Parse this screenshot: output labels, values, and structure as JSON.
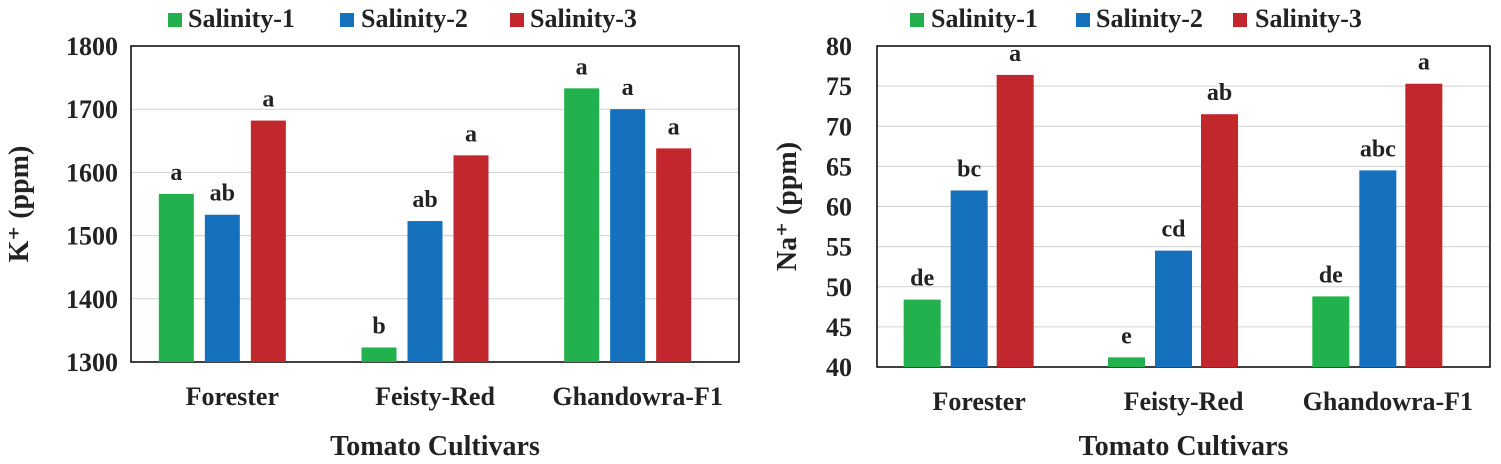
{
  "chart_data": [
    {
      "type": "bar",
      "title": "",
      "xlabel": "Tomato Cultivars",
      "ylabel": "K⁺ (ppm)",
      "ylim": [
        1300,
        1800
      ],
      "yticks": [
        1300,
        1400,
        1500,
        1600,
        1700,
        1800
      ],
      "grid": true,
      "legend": "top-center",
      "categories": [
        "Forester",
        "Feisty-Red",
        "Ghandowra-F1"
      ],
      "series": [
        {
          "name": "Salinity-1",
          "color": "#22b14c",
          "values": [
            1566,
            1323,
            1733
          ],
          "labels": [
            "a",
            "b",
            "a"
          ]
        },
        {
          "name": "Salinity-2",
          "color": "#1570be",
          "values": [
            1533,
            1523,
            1700
          ],
          "labels": [
            "ab",
            "ab",
            "a"
          ]
        },
        {
          "name": "Salinity-3",
          "color": "#c1272d",
          "values": [
            1682,
            1627,
            1638
          ],
          "labels": [
            "a",
            "a",
            "a"
          ]
        }
      ]
    },
    {
      "type": "bar",
      "title": "",
      "xlabel": "Tomato Cultivars",
      "ylabel": "Na⁺ (ppm)",
      "ylim": [
        40,
        80
      ],
      "yticks": [
        40,
        45,
        50,
        55,
        60,
        65,
        70,
        75,
        80
      ],
      "grid": true,
      "legend": "top-center",
      "categories": [
        "Forester",
        "Feisty-Red",
        "Ghandowra-F1"
      ],
      "series": [
        {
          "name": "Salinity-1",
          "color": "#22b14c",
          "values": [
            48.4,
            41.2,
            48.8
          ],
          "labels": [
            "de",
            "e",
            "de"
          ]
        },
        {
          "name": "Salinity-2",
          "color": "#1570be",
          "values": [
            62.0,
            54.5,
            64.5
          ],
          "labels": [
            "bc",
            "cd",
            "abc"
          ]
        },
        {
          "name": "Salinity-3",
          "color": "#c1272d",
          "values": [
            76.4,
            71.5,
            75.3
          ],
          "labels": [
            "a",
            "ab",
            "a"
          ]
        }
      ]
    }
  ]
}
